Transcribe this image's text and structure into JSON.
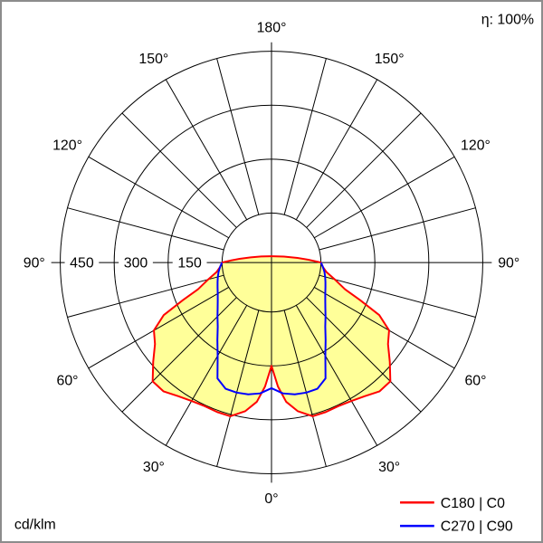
{
  "header": {
    "eta_label": "η: 100%"
  },
  "footer": {
    "unit_label": "cd/klm"
  },
  "legend": [
    {
      "label": "C180 | C0",
      "color": "#ff0000"
    },
    {
      "label": "C270 | C90",
      "color": "#0000ff"
    }
  ],
  "chart_data": {
    "type": "line",
    "subtype": "polar-luminous-intensity-distribution",
    "unit": "cd/klm",
    "efficiency": "η: 100%",
    "angle_labels": [
      "0°",
      "30°",
      "60°",
      "90°",
      "120°",
      "150°",
      "180°"
    ],
    "angle_tick_step_deg": 15,
    "angle_label_step_deg": 30,
    "ring_values": [
      150,
      300,
      450
    ],
    "radial_max": 450,
    "grid": true,
    "legend_position": "bottom-right",
    "colors": {
      "grid": "#000000",
      "fill": "#ffff99",
      "background": "#ffffff"
    },
    "series": [
      {
        "name": "C180 | C0",
        "color": "#ff0000",
        "fill": "#ffff99",
        "symmetric": true,
        "gamma_deg": [
          0,
          3,
          6,
          10,
          15,
          20,
          25,
          30,
          35,
          40,
          45,
          50,
          55,
          60,
          64,
          67,
          70,
          75,
          80,
          85,
          90
        ],
        "values_cd_klm": [
          150,
          208,
          252,
          282,
          305,
          305,
          303,
          307,
          316,
          330,
          330,
          292,
          258,
          240,
          196,
          130,
          80,
          45,
          18,
          6,
          0
        ]
      },
      {
        "name": "C270 | C90",
        "color": "#0000ff",
        "symmetric": true,
        "gamma_deg": [
          0,
          5,
          10,
          15,
          20,
          25,
          30,
          35,
          40,
          45,
          50,
          55,
          60,
          65,
          70,
          75,
          80,
          85,
          90
        ],
        "values_cd_klm": [
          212,
          228,
          235,
          237,
          236,
          218,
          162,
          125,
          95,
          75,
          58,
          45,
          35,
          28,
          22,
          17,
          12,
          6,
          0
        ]
      }
    ]
  }
}
